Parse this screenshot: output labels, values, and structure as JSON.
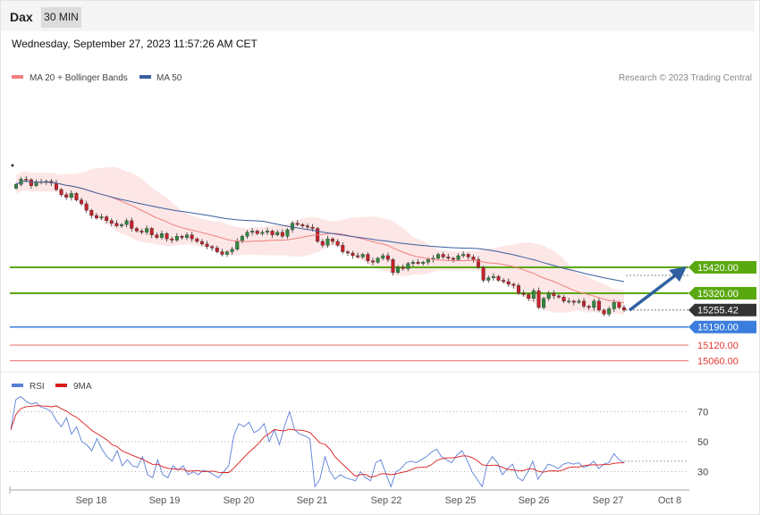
{
  "header": {
    "symbol": "Dax",
    "interval": "30 MIN"
  },
  "datetime": "Wednesday, September 27, 2023 11:57:26 AM CET",
  "legend": {
    "ma20_label": "MA 20 + Bollinger Bands",
    "ma50_label": "MA 50",
    "copyright": "Research © 2023 Trading Central"
  },
  "colors": {
    "ma20": "#f08080",
    "ma50": "#3a5f9e",
    "bands": "#fde2e2",
    "bull": "#2e8b3e",
    "bear": "#c8202a",
    "green_level": "#5aa80f",
    "blue_level": "#3b7ddd",
    "red_level": "#e53935",
    "rsi": "#5b7fd6",
    "rsi_ma": "#d91c1c",
    "arrow": "#2f5f9f"
  },
  "levels": [
    {
      "value": 15420.0,
      "label": "15420.00",
      "kind": "resistance"
    },
    {
      "value": 15320.0,
      "label": "15320.00",
      "kind": "resistance"
    },
    {
      "value": 15255.42,
      "label": "15255.42",
      "kind": "current"
    },
    {
      "value": 15190.0,
      "label": "15190.00",
      "kind": "pivot"
    },
    {
      "value": 15120.0,
      "label": "15120.00",
      "kind": "support"
    },
    {
      "value": 15060.0,
      "label": "15060.00",
      "kind": "support"
    }
  ],
  "rsi": {
    "label": "RSI",
    "ma_label": "9MA",
    "ticks": [
      70,
      50,
      30
    ]
  },
  "chart_data": {
    "type": "candlestick",
    "x_ticks": [
      "Sep 18",
      "Sep 19",
      "Sep 20",
      "Sep 21",
      "Sep 22",
      "Sep 25",
      "Sep 26",
      "Sep 27",
      "Oct 8"
    ],
    "close": [
      15740,
      15760,
      15758,
      15735,
      15750,
      15748,
      15752,
      15745,
      15720,
      15700,
      15690,
      15705,
      15680,
      15665,
      15640,
      15620,
      15610,
      15615,
      15600,
      15590,
      15580,
      15585,
      15600,
      15570,
      15560,
      15555,
      15570,
      15545,
      15535,
      15550,
      15530,
      15525,
      15540,
      15535,
      15545,
      15530,
      15520,
      15510,
      15500,
      15495,
      15480,
      15470,
      15480,
      15490,
      15520,
      15540,
      15555,
      15560,
      15550,
      15555,
      15560,
      15545,
      15555,
      15540,
      15565,
      15590,
      15585,
      15580,
      15575,
      15570,
      15520,
      15505,
      15530,
      15520,
      15505,
      15480,
      15475,
      15465,
      15460,
      15470,
      15445,
      15440,
      15455,
      15465,
      15450,
      15400,
      15420,
      15415,
      15435,
      15440,
      15435,
      15440,
      15450,
      15455,
      15470,
      15460,
      15455,
      15450,
      15465,
      15470,
      15460,
      15450,
      15420,
      15370,
      15380,
      15385,
      15370,
      15365,
      15355,
      15350,
      15320,
      15315,
      15300,
      15330,
      15265,
      15300,
      15320,
      15310,
      15305,
      15290,
      15290,
      15285,
      15290,
      15270,
      15265,
      15290,
      15255,
      15240,
      15260,
      15285,
      15265,
      15255
    ],
    "rsi_values": [
      58,
      78,
      80,
      77,
      75,
      76,
      73,
      72,
      70,
      64,
      60,
      66,
      55,
      60,
      50,
      48,
      44,
      52,
      45,
      40,
      37,
      44,
      34,
      38,
      34,
      33,
      40,
      28,
      26,
      38,
      28,
      26,
      34,
      31,
      34,
      28,
      30,
      28,
      31,
      30,
      28,
      26,
      30,
      34,
      54,
      62,
      60,
      63,
      56,
      58,
      62,
      50,
      58,
      48,
      60,
      70,
      58,
      55,
      54,
      52,
      20,
      25,
      40,
      30,
      25,
      28,
      26,
      25,
      24,
      30,
      26,
      24,
      36,
      38,
      29,
      20,
      30,
      32,
      36,
      37,
      36,
      38,
      40,
      43,
      45,
      40,
      38,
      36,
      41,
      44,
      38,
      30,
      25,
      20,
      35,
      40,
      36,
      28,
      32,
      35,
      26,
      24,
      30,
      37,
      25,
      30,
      35,
      34,
      32,
      35,
      36,
      35,
      36,
      33,
      34,
      37,
      32,
      35,
      36,
      42,
      38,
      36
    ],
    "rsi_ticks": [
      70,
      50,
      30
    ]
  }
}
